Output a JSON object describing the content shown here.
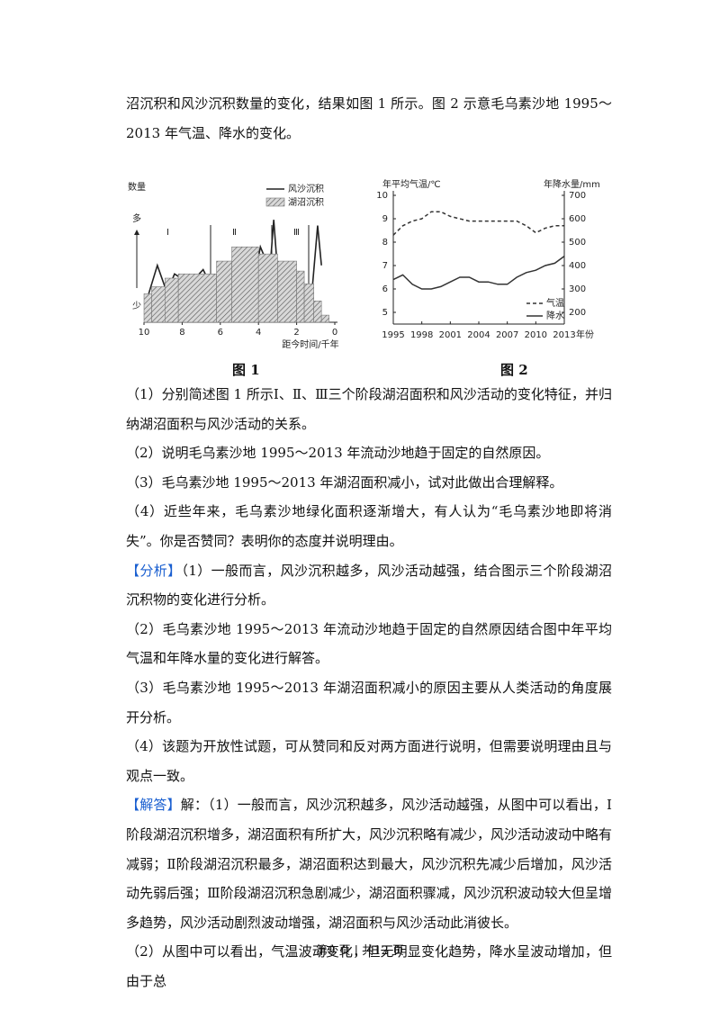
{
  "intro": "沼沉积和风沙沉积数量的变化，结果如图 1 所示。图 2 示意毛乌素沙地 1995～2013 年气温、降水的变化。",
  "chart_data": [
    {
      "type": "area",
      "ylabel": "数量",
      "y_high": "多",
      "y_low": "少",
      "xlabel": "距今时间/千年",
      "xlim": [
        10,
        0
      ],
      "xticks": [
        10,
        8,
        6,
        4,
        2,
        0
      ],
      "ylim": [
        0,
        10
      ],
      "stages": [
        "Ⅰ",
        "Ⅱ",
        "Ⅲ"
      ],
      "series": [
        {
          "name": "风沙沉积",
          "color": "#222222",
          "x": [
            9.8,
            9.3,
            8.8,
            8.4,
            7.6,
            6.9,
            6.2,
            5.0,
            4.3,
            3.9,
            3.4,
            3.2,
            2.9,
            2.6,
            2.2,
            1.8,
            1.3,
            0.9,
            0.7
          ],
          "values": [
            1.8,
            4.0,
            2.1,
            3.4,
            2.7,
            3.7,
            1.8,
            0.8,
            2.4,
            5.3,
            3.7,
            7.2,
            1.8,
            4.0,
            0.8,
            2.4,
            0.5,
            6.8,
            4.0
          ]
        },
        {
          "name": "湖沼沉积",
          "color": "#777777",
          "bins": [
            10,
            9.6,
            8.9,
            8.2,
            6.2,
            5.4,
            4.0,
            3.0,
            2.0,
            1.6,
            1.1,
            0.7,
            0.3
          ],
          "values": [
            2.0,
            2.5,
            3.1,
            3.4,
            4.3,
            5.3,
            4.8,
            4.3,
            3.6,
            2.7,
            1.5,
            0.5
          ]
        }
      ]
    },
    {
      "type": "line",
      "ylabel": "年平均气温/℃",
      "y2label": "年降水量/mm",
      "xlabel": "年份",
      "x": [
        1995,
        1996,
        1997,
        1998,
        1999,
        2000,
        2001,
        2002,
        2003,
        2004,
        2005,
        2006,
        2007,
        2008,
        2009,
        2010,
        2011,
        2012,
        2013
      ],
      "xlim": [
        1995,
        2013
      ],
      "xticks": [
        1995,
        1998,
        2001,
        2004,
        2007,
        2010,
        2013
      ],
      "ylim": [
        4.5,
        10
      ],
      "yticks": [
        5,
        6,
        7,
        8,
        9,
        10
      ],
      "y2lim": [
        150,
        700
      ],
      "y2ticks": [
        200,
        300,
        400,
        500,
        600,
        700
      ],
      "series": [
        {
          "name": "气温",
          "color": "#333333",
          "line_style": "dashed",
          "values": [
            8.3,
            8.7,
            8.9,
            9.0,
            9.3,
            9.3,
            9.1,
            9.0,
            8.9,
            8.9,
            8.9,
            8.9,
            8.9,
            8.9,
            8.7,
            8.4,
            8.6,
            8.7,
            8.7
          ]
        },
        {
          "name": "降水",
          "color": "#333333",
          "line_style": "solid",
          "axis": "y2",
          "values": [
            340,
            360,
            320,
            300,
            300,
            310,
            330,
            350,
            350,
            330,
            330,
            320,
            320,
            350,
            370,
            380,
            400,
            410,
            440
          ]
        }
      ]
    }
  ],
  "figure_captions": [
    "图 1",
    "图 2"
  ],
  "questions": [
    "（1）分别简述图 1 所示Ⅰ、Ⅱ、Ⅲ三个阶段湖沼面积和风沙活动的变化特征，并归纳湖沼面积与风沙活动的关系。",
    "（2）说明毛乌素沙地 1995～2013 年流动沙地趋于固定的自然原因。",
    "（3）毛乌素沙地 1995～2013 年湖沼面积减小，试对此做出合理解释。",
    "（4）近些年来，毛乌素沙地绿化面积逐渐增大，有人认为“毛乌素沙地即将消失”。你是否赞同？表明你的态度并说明理由。"
  ],
  "analysis": {
    "tag": "【分析】",
    "items": [
      "（1）一般而言，风沙沉积越多，风沙活动越强，结合图示三个阶段湖沼沉积物的变化进行分析。",
      "（2）毛乌素沙地 1995～2013 年流动沙地趋于固定的自然原因结合图中年平均气温和年降水量的变化进行解答。",
      "（3）毛乌素沙地 1995～2013 年湖沼面积减小的原因主要从人类活动的角度展开分析。",
      "（4）该题为开放性试题，可从赞同和反对两方面进行说明，但需要说明理由且与观点一致。"
    ]
  },
  "answer": {
    "tag": "【解答】",
    "items": [
      "解：（1）一般而言，风沙沉积越多，风沙活动越强，从图中可以看出，Ⅰ阶段湖沼沉积增多，湖沼面积有所扩大，风沙沉积略有减少，风沙活动波动中略有减弱；Ⅱ阶段湖沼沉积最多，湖沼面积达到最大，风沙沉积先减少后增加，风沙活动先弱后强；Ⅲ阶段湖沼沉积急剧减少，湖沼面积骤减，风沙沉积波动较大但呈增多趋势，风沙活动剧烈波动增强，湖沼面积与风沙活动此消彼长。",
      "（2）从图中可以看出，气温波动变化，但无明显变化趋势，降水呈波动增加，但由于总"
    ]
  },
  "footer": "第9 页 | 共12 页"
}
